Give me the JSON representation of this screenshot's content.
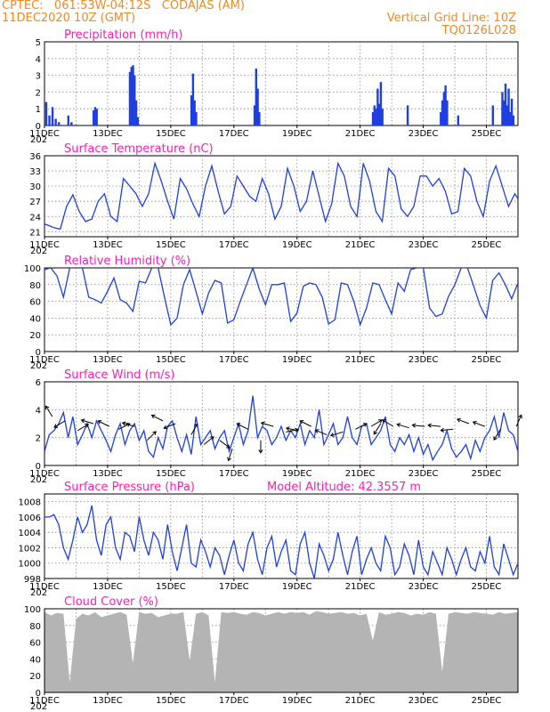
{
  "header": {
    "station": "CPTEC:   061:53W-04:12S   CODAJAS (AM)",
    "datetime": "11DEC2020 10Z (GMT)",
    "grid_note": "Vertical Grid Line: 10Z",
    "code": "TQ0126L028"
  },
  "colors": {
    "header": "#f08a24",
    "title": "#ff1fb0",
    "line": "#1f3fe0",
    "cloud": "#b4b4b4",
    "arrow": "#000000"
  },
  "x_axis": {
    "date_labels": [
      "11DEC",
      "13DEC",
      "15DEC",
      "17DEC",
      "19DEC",
      "21DEC",
      "23DEC",
      "25DEC"
    ],
    "year_label": "202",
    "start_day": 11,
    "end_day": 26
  },
  "chart_data": [
    {
      "id": "precip",
      "type": "bar",
      "title": "Precipitation (mm/h)",
      "ylim": [
        0,
        5
      ],
      "yticks": [
        0,
        1,
        2,
        3,
        4,
        5
      ],
      "grid": true,
      "bars": [
        {
          "x": 11.05,
          "y": 1.4
        },
        {
          "x": 11.15,
          "y": 0.6
        },
        {
          "x": 11.25,
          "y": 1.1
        },
        {
          "x": 11.35,
          "y": 0.4
        },
        {
          "x": 11.45,
          "y": 0.2
        },
        {
          "x": 11.75,
          "y": 0.6
        },
        {
          "x": 11.85,
          "y": 0.2
        },
        {
          "x": 12.55,
          "y": 0.9
        },
        {
          "x": 12.6,
          "y": 1.1
        },
        {
          "x": 12.65,
          "y": 1.0
        },
        {
          "x": 13.7,
          "y": 3.2
        },
        {
          "x": 13.75,
          "y": 3.5
        },
        {
          "x": 13.8,
          "y": 3.6
        },
        {
          "x": 13.85,
          "y": 3.0
        },
        {
          "x": 13.9,
          "y": 1.5
        },
        {
          "x": 13.95,
          "y": 0.5
        },
        {
          "x": 15.65,
          "y": 1.8
        },
        {
          "x": 15.7,
          "y": 3.1
        },
        {
          "x": 15.75,
          "y": 1.5
        },
        {
          "x": 15.8,
          "y": 0.8
        },
        {
          "x": 17.65,
          "y": 1.2
        },
        {
          "x": 17.7,
          "y": 3.4
        },
        {
          "x": 17.75,
          "y": 2.2
        },
        {
          "x": 17.8,
          "y": 0.8
        },
        {
          "x": 21.4,
          "y": 0.8
        },
        {
          "x": 21.45,
          "y": 1.2
        },
        {
          "x": 21.5,
          "y": 1.0
        },
        {
          "x": 21.55,
          "y": 2.2
        },
        {
          "x": 21.6,
          "y": 1.3
        },
        {
          "x": 21.65,
          "y": 2.6
        },
        {
          "x": 21.7,
          "y": 1.0
        },
        {
          "x": 22.5,
          "y": 1.2
        },
        {
          "x": 23.55,
          "y": 0.8
        },
        {
          "x": 23.6,
          "y": 1.5
        },
        {
          "x": 23.65,
          "y": 2.0
        },
        {
          "x": 23.7,
          "y": 2.4
        },
        {
          "x": 23.75,
          "y": 1.5
        },
        {
          "x": 24.1,
          "y": 0.6
        },
        {
          "x": 25.2,
          "y": 1.2
        },
        {
          "x": 25.5,
          "y": 2.0
        },
        {
          "x": 25.55,
          "y": 1.5
        },
        {
          "x": 25.6,
          "y": 2.5
        },
        {
          "x": 25.65,
          "y": 1.2
        },
        {
          "x": 25.7,
          "y": 2.2
        },
        {
          "x": 25.75,
          "y": 0.8
        },
        {
          "x": 25.8,
          "y": 1.6
        },
        {
          "x": 25.85,
          "y": 0.6
        }
      ]
    },
    {
      "id": "temp",
      "type": "line",
      "title": "Surface Temperature (nC)",
      "ylim": [
        20,
        36
      ],
      "yticks": [
        21,
        24,
        27,
        30,
        33,
        36
      ],
      "grid": true,
      "x": [
        11,
        11.1,
        11.3,
        11.5,
        11.7,
        11.9,
        12.1,
        12.3,
        12.5,
        12.7,
        12.9,
        13.1,
        13.3,
        13.5,
        13.7,
        13.9,
        14.1,
        14.3,
        14.5,
        14.7,
        14.9,
        15.1,
        15.3,
        15.5,
        15.7,
        15.9,
        16.1,
        16.3,
        16.5,
        16.7,
        16.9,
        17.1,
        17.3,
        17.5,
        17.7,
        17.9,
        18.1,
        18.3,
        18.5,
        18.7,
        18.9,
        19.1,
        19.3,
        19.5,
        19.7,
        19.9,
        20.1,
        20.3,
        20.5,
        20.7,
        20.9,
        21.1,
        21.3,
        21.5,
        21.7,
        21.9,
        22.1,
        22.3,
        22.5,
        22.7,
        22.9,
        23.1,
        23.3,
        23.5,
        23.7,
        23.9,
        24.1,
        24.3,
        24.5,
        24.7,
        24.9,
        25.1,
        25.3,
        25.5,
        25.7,
        25.9,
        26
      ],
      "y": [
        22.5,
        22.3,
        21.8,
        21.5,
        26,
        28.3,
        25,
        23,
        23.5,
        27,
        28.5,
        24,
        23,
        31.5,
        30,
        28.5,
        26,
        28.5,
        34.5,
        31,
        27,
        23.5,
        31.5,
        29.5,
        26.5,
        24,
        30,
        34,
        29,
        24.5,
        26,
        32,
        30,
        28,
        27,
        31.5,
        28.5,
        23.5,
        26,
        33.5,
        30,
        25,
        27,
        33,
        28,
        23,
        26.5,
        34.5,
        32,
        26,
        24,
        34.5,
        31,
        25,
        23,
        33.5,
        32,
        25.5,
        24,
        26,
        32,
        32,
        30,
        31.5,
        29,
        24.5,
        25,
        33.5,
        32,
        27,
        24,
        31,
        34,
        30,
        26,
        28.5,
        27.5
      ]
    },
    {
      "id": "rh",
      "type": "line",
      "title": "Relative Humidity (%)",
      "ylim": [
        0,
        100
      ],
      "yticks": [
        0,
        20,
        40,
        60,
        80,
        100
      ],
      "grid": true,
      "x": [
        11,
        11.2,
        11.4,
        11.6,
        11.8,
        12,
        12.2,
        12.4,
        12.6,
        12.8,
        13,
        13.2,
        13.4,
        13.6,
        13.8,
        14,
        14.2,
        14.4,
        14.6,
        14.8,
        15,
        15.2,
        15.4,
        15.6,
        15.8,
        16,
        16.2,
        16.4,
        16.6,
        16.8,
        17,
        17.2,
        17.4,
        17.6,
        17.8,
        18,
        18.2,
        18.4,
        18.6,
        18.8,
        19,
        19.2,
        19.4,
        19.6,
        19.8,
        20,
        20.2,
        20.4,
        20.6,
        20.8,
        21,
        21.2,
        21.4,
        21.6,
        21.8,
        22,
        22.2,
        22.4,
        22.6,
        22.8,
        23,
        23.2,
        23.4,
        23.6,
        23.8,
        24,
        24.2,
        24.4,
        24.6,
        24.8,
        25,
        25.2,
        25.4,
        25.6,
        25.8,
        26
      ],
      "y": [
        98,
        100,
        90,
        65,
        100,
        100,
        100,
        65,
        62,
        58,
        72,
        88,
        62,
        58,
        48,
        84,
        82,
        100,
        100,
        65,
        32,
        40,
        80,
        98,
        72,
        45,
        70,
        85,
        82,
        34,
        38,
        60,
        80,
        100,
        75,
        56,
        80,
        80,
        82,
        36,
        46,
        78,
        82,
        80,
        65,
        33,
        38,
        82,
        80,
        60,
        32,
        52,
        82,
        80,
        62,
        45,
        82,
        72,
        98,
        100,
        100,
        52,
        42,
        45,
        66,
        80,
        100,
        100,
        78,
        55,
        40,
        85,
        94,
        80,
        63,
        82
      ]
    },
    {
      "id": "wind",
      "type": "line",
      "title": "Surface Wind (m/s)",
      "ylim": [
        0,
        6
      ],
      "yticks": [
        0,
        2,
        4,
        6
      ],
      "grid": true,
      "x": [
        11,
        11.15,
        11.3,
        11.45,
        11.6,
        11.75,
        11.9,
        12.05,
        12.2,
        12.35,
        12.5,
        12.65,
        12.8,
        12.95,
        13.1,
        13.25,
        13.4,
        13.55,
        13.7,
        13.85,
        14,
        14.15,
        14.3,
        14.45,
        14.6,
        14.75,
        14.9,
        15.05,
        15.2,
        15.35,
        15.5,
        15.65,
        15.8,
        15.95,
        16.1,
        16.25,
        16.4,
        16.55,
        16.7,
        16.85,
        17,
        17.15,
        17.3,
        17.45,
        17.6,
        17.75,
        17.9,
        18.05,
        18.2,
        18.35,
        18.5,
        18.65,
        18.8,
        18.95,
        19.1,
        19.25,
        19.4,
        19.55,
        19.7,
        19.85,
        20,
        20.15,
        20.3,
        20.45,
        20.6,
        20.75,
        20.9,
        21.05,
        21.2,
        21.35,
        21.5,
        21.65,
        21.8,
        21.95,
        22.1,
        22.25,
        22.4,
        22.55,
        22.7,
        22.85,
        23,
        23.15,
        23.3,
        23.45,
        23.6,
        23.75,
        23.9,
        24.05,
        24.2,
        24.35,
        24.5,
        24.65,
        24.8,
        24.95,
        25.1,
        25.25,
        25.4,
        25.55,
        25.7,
        25.85,
        26
      ],
      "y": [
        1.0,
        2.2,
        2.5,
        3.0,
        3.8,
        2.0,
        3.5,
        1.5,
        2.2,
        3.0,
        2.0,
        3.2,
        2.5,
        1.8,
        1.0,
        2.2,
        3.0,
        1.5,
        2.5,
        3.0,
        1.8,
        2.5,
        1.0,
        0.6,
        2.0,
        1.2,
        2.8,
        3.2,
        2.0,
        1.0,
        2.2,
        0.8,
        3.5,
        1.5,
        2.0,
        2.5,
        1.2,
        2.0,
        2.5,
        1.0,
        2.0,
        3.0,
        1.5,
        2.5,
        5.0,
        2.0,
        2.8,
        2.5,
        1.5,
        2.0,
        2.8,
        1.8,
        2.5,
        2.0,
        3.0,
        1.5,
        2.5,
        2.0,
        4.0,
        1.5,
        2.2,
        3.0,
        1.5,
        2.0,
        3.5,
        2.0,
        1.5,
        2.8,
        3.0,
        1.5,
        2.0,
        2.5,
        3.5,
        1.5,
        1.0,
        2.0,
        1.5,
        2.2,
        1.0,
        2.0,
        0.8,
        1.5,
        0.4,
        1.0,
        1.5,
        2.5,
        1.2,
        0.6,
        1.0,
        1.5,
        0.5,
        1.8,
        1.0,
        2.0,
        2.5,
        3.5,
        2.0,
        3.8,
        2.5,
        2.2,
        1.0
      ]
    },
    {
      "id": "pressure",
      "type": "line",
      "title": "Surface Pressure (hPa)",
      "ylim": [
        998,
        1009
      ],
      "yticks": [
        998,
        1000,
        1002,
        1004,
        1006,
        1008
      ],
      "grid": true,
      "annotation": "Model Altitude: 42.3557 m",
      "x": [
        11,
        11.15,
        11.3,
        11.45,
        11.6,
        11.75,
        11.9,
        12.05,
        12.2,
        12.35,
        12.5,
        12.65,
        12.8,
        12.95,
        13.1,
        13.25,
        13.4,
        13.55,
        13.7,
        13.85,
        14,
        14.15,
        14.3,
        14.45,
        14.6,
        14.75,
        14.9,
        15.05,
        15.2,
        15.35,
        15.5,
        15.65,
        15.8,
        15.95,
        16.1,
        16.25,
        16.4,
        16.55,
        16.7,
        16.85,
        17,
        17.15,
        17.3,
        17.45,
        17.6,
        17.75,
        17.9,
        18.05,
        18.2,
        18.35,
        18.5,
        18.65,
        18.8,
        18.95,
        19.1,
        19.25,
        19.4,
        19.55,
        19.7,
        19.85,
        20,
        20.15,
        20.3,
        20.45,
        20.6,
        20.75,
        20.9,
        21.05,
        21.2,
        21.35,
        21.5,
        21.65,
        21.8,
        21.95,
        22.1,
        22.25,
        22.4,
        22.55,
        22.7,
        22.85,
        23,
        23.15,
        23.3,
        23.45,
        23.6,
        23.75,
        23.9,
        24.05,
        24.2,
        24.35,
        24.5,
        24.65,
        24.8,
        24.95,
        25.1,
        25.25,
        25.4,
        25.55,
        25.7,
        25.85,
        26
      ],
      "y": [
        1006,
        1006,
        1006.3,
        1005,
        1002,
        1000.5,
        1003,
        1006,
        1004,
        1005,
        1007.5,
        1003,
        1001,
        1005,
        1006,
        1002,
        1000.5,
        1004,
        1003.5,
        1001.5,
        1006,
        1003,
        1001,
        1004,
        1003,
        1000.5,
        1005,
        1001.5,
        999,
        1002,
        1005,
        1000,
        999.5,
        1003,
        1001.5,
        999.5,
        1002,
        1001,
        998.5,
        1001,
        1003,
        1000,
        999,
        1002.5,
        1004,
        1000.5,
        998.5,
        1002,
        1003.5,
        999.5,
        1001.5,
        1003,
        999,
        998.5,
        1002.5,
        1004,
        1000,
        998,
        1002.5,
        1001,
        999,
        1000.5,
        1004,
        1001,
        998.5,
        1001.5,
        1003.5,
        998.5,
        1000.5,
        1002,
        1000,
        999,
        1003.5,
        1002,
        998.5,
        999.5,
        1002.5,
        1001,
        998.5,
        1003,
        999.5,
        998.5,
        1001.5,
        1000,
        998.5,
        1002,
        1000.5,
        998.5,
        1000.5,
        1002,
        999.5,
        999,
        1001.5,
        1000,
        1003.5,
        999.5,
        998.5,
        1002.5,
        1000.5,
        998.5,
        1000
      ]
    },
    {
      "id": "cloud",
      "type": "area",
      "title": "Cloud Cover (%)",
      "ylim": [
        0,
        100
      ],
      "yticks": [
        0,
        20,
        40,
        60,
        80,
        100
      ],
      "grid": true,
      "x": [
        11,
        11.2,
        11.4,
        11.6,
        11.8,
        12,
        12.2,
        12.4,
        12.6,
        12.8,
        13,
        13.2,
        13.4,
        13.6,
        13.8,
        14,
        14.2,
        14.4,
        14.6,
        14.8,
        15,
        15.2,
        15.4,
        15.6,
        15.8,
        16,
        16.2,
        16.4,
        16.6,
        16.8,
        17,
        17.2,
        17.4,
        17.6,
        17.8,
        18,
        18.2,
        18.4,
        18.6,
        18.8,
        19,
        19.2,
        19.4,
        19.6,
        19.8,
        20,
        20.2,
        20.4,
        20.6,
        20.8,
        21,
        21.2,
        21.4,
        21.6,
        21.8,
        22,
        22.2,
        22.4,
        22.6,
        22.8,
        23,
        23.2,
        23.4,
        23.6,
        23.8,
        24,
        24.2,
        24.4,
        24.6,
        24.8,
        25,
        25.2,
        25.4,
        25.6,
        25.8,
        26
      ],
      "y": [
        96,
        92,
        95,
        94,
        12,
        88,
        94,
        92,
        96,
        90,
        92,
        94,
        96,
        93,
        35,
        96,
        94,
        95,
        90,
        92,
        94,
        94,
        96,
        38,
        94,
        96,
        92,
        12,
        96,
        95,
        96,
        94,
        93,
        96,
        95,
        92,
        94,
        96,
        94,
        96,
        95,
        96,
        93,
        97,
        96,
        94,
        95,
        96,
        94,
        95,
        92,
        94,
        62,
        96,
        93,
        94,
        96,
        95,
        92,
        94,
        93,
        96,
        94,
        25,
        94,
        96,
        95,
        94,
        96,
        95,
        94,
        93,
        96,
        94,
        95,
        96
      ]
    },
    {
      "id": "wind_vectors",
      "type": "scatter",
      "x": [
        11.25,
        11.65,
        12.05,
        12.55,
        13.05,
        13.35,
        13.85,
        14.25,
        14.75,
        15.15,
        15.65,
        16.05,
        16.55,
        16.95,
        17.45,
        17.85,
        18.25,
        18.65,
        19.05,
        19.45,
        19.95,
        20.45,
        20.85,
        21.35,
        21.65,
        22.05,
        22.55,
        23.05,
        23.55,
        23.95,
        24.45,
        24.95,
        25.45,
        25.95
      ],
      "y": [
        3.5,
        3.2,
        2.5,
        3.0,
        2.8,
        2.6,
        2.8,
        1.8,
        3.2,
        3.0,
        2.2,
        1.5,
        1.8,
        1.2,
        2.6,
        1.8,
        2.8,
        2.4,
        2.5,
        2.8,
        2.2,
        2.4,
        2.6,
        2.8,
        3.0,
        2.8,
        2.7,
        2.8,
        2.8,
        2.6,
        3.0,
        2.8,
        2.6,
        2.8
      ],
      "u": [
        -0.5,
        -1,
        1,
        -1,
        -1,
        1,
        -1,
        0.7,
        -1,
        -1,
        0.5,
        1,
        0.8,
        -0.3,
        -1,
        0,
        -1,
        1,
        -1,
        -1,
        -1,
        -1,
        1,
        1,
        -0.5,
        -1,
        -1,
        -1,
        -1,
        -1,
        -0.8,
        -0.8,
        -0.5,
        0.3
      ],
      "v": [
        0.8,
        -0.6,
        0.6,
        0.3,
        0.5,
        0.5,
        0.3,
        0.7,
        0.5,
        -0.4,
        0.9,
        0.8,
        -0.6,
        -0.9,
        0.5,
        -0.9,
        0.3,
        0.2,
        0.2,
        0.5,
        0.4,
        -0.3,
        0.5,
        0.6,
        -0.8,
        0.6,
        0.3,
        0.1,
        0.1,
        -0.1,
        0.3,
        0.3,
        -0.8,
        0.7
      ]
    }
  ]
}
